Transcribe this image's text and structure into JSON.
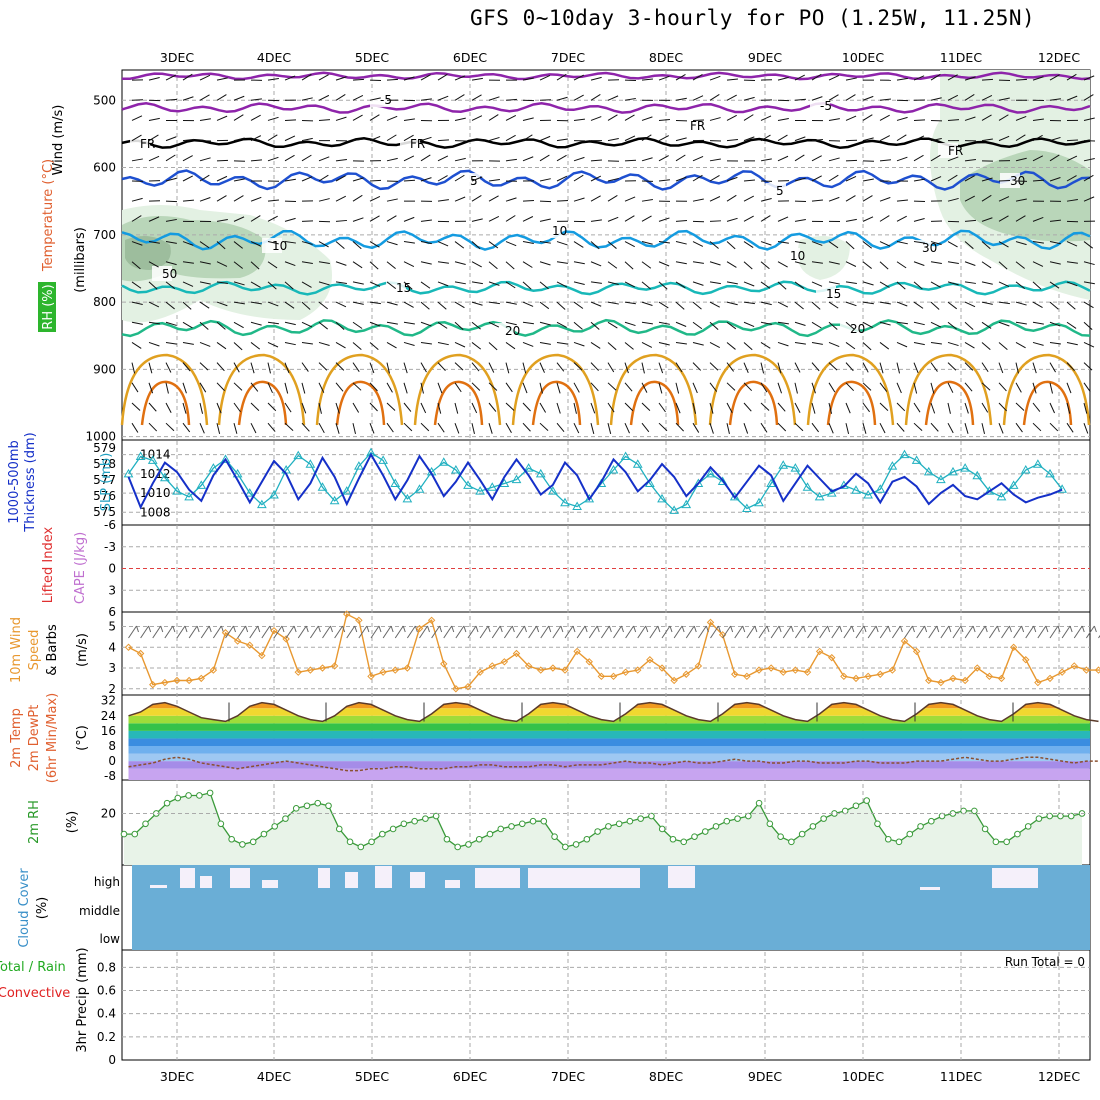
{
  "title": "GFS 0~10day 3-hourly for PO (1.25W, 11.25N)",
  "dates": [
    "3DEC",
    "4DEC",
    "5DEC",
    "6DEC",
    "7DEC",
    "8DEC",
    "9DEC",
    "10DEC",
    "11DEC",
    "12DEC"
  ],
  "colors": {
    "temp_cold": "#8e24aa",
    "temp_blue": "#1e50d0",
    "temp_sky": "#149be0",
    "temp_teal": "#18b8b8",
    "temp_green": "#20b888",
    "temp_warm": "#e0a020",
    "temp_hot": "#e07010",
    "rh_fill_light": "#e3f1e3",
    "rh_fill_mid": "#b9d6b9",
    "rh_fill_dark": "#9dbd9d",
    "thickness": "#1530c8",
    "slp": "#20b0c0",
    "wind": "#e89830",
    "rh2m": "#3a9a3a",
    "cloud": "#6aaed6",
    "cloud_gap": "#f5f0fa",
    "lifted_zero": "#e04040",
    "precip_total": "#22aa22",
    "precip_conv": "#e02020"
  },
  "panels": {
    "upper_air": {
      "ylabels": [
        "Wind (m/s)",
        "Temperature (°C)",
        "(millibars)",
        "RH (%)"
      ],
      "ticks": [
        "500",
        "600",
        "700",
        "800",
        "900",
        "1000"
      ],
      "contour_labels": [
        "-5",
        "-5",
        "FR",
        "FR",
        "FR",
        "FR",
        "5",
        "5",
        "10",
        "10",
        "15",
        "15",
        "20",
        "20",
        "30",
        "30",
        "50",
        "10"
      ]
    },
    "thickness": {
      "ylabels": [
        "1000-500mb",
        "Thickness (dm)",
        "SLP (mb)"
      ],
      "left_ticks": [
        "579",
        "578",
        "577",
        "576",
        "575"
      ],
      "right_ticks": [
        "1014",
        "1012",
        "1010",
        "1008"
      ]
    },
    "stability": {
      "ylabels": [
        "Lifted Index",
        "CAPE (J/kg)"
      ],
      "ticks": [
        "-6",
        "-3",
        "0",
        "3",
        "6"
      ]
    },
    "wind10m": {
      "ylabels": [
        "10m Wind",
        "Speed",
        "& Barbs",
        "(m/s)"
      ],
      "ticks": [
        "5",
        "4",
        "3",
        "2"
      ]
    },
    "temp2m": {
      "ylabels": [
        "2m Temp",
        "2m DewPt",
        "(6hr Min/Max)",
        "(°C)"
      ],
      "ticks": [
        "32",
        "24",
        "16",
        "8",
        "0",
        "-8"
      ]
    },
    "rh2m": {
      "ylabels": [
        "2m RH",
        "(%)"
      ],
      "ticks": [
        "20"
      ]
    },
    "cloud": {
      "ylabels": [
        "Cloud Cover",
        "(%)"
      ],
      "levels": [
        "high",
        "middle",
        "low"
      ]
    },
    "precip": {
      "ylabels": [
        "Total / Rain",
        "Convective",
        "3hr Precip (mm)"
      ],
      "ticks": [
        "0.8",
        "0.6",
        "0.4",
        "0.2",
        "0"
      ],
      "run_total": "Run Total = 0"
    }
  },
  "chart_data": [
    {
      "type": "line",
      "title": "1000-500mb Thickness (dm) / SLP (mb)",
      "x": "3-hourly steps from 2DEC 12Z to 12DEC 06Z",
      "series": [
        {
          "name": "Thickness (dm)",
          "axis": "left",
          "ylim": [
            574.5,
            579.2
          ],
          "values": [
            577.2,
            575.3,
            576.8,
            578.1,
            577.5,
            576.4,
            575.7,
            577.3,
            578.3,
            577.0,
            575.6,
            576.9,
            578.2,
            577.4,
            575.8,
            576.8,
            578.4,
            577.2,
            575.5,
            577.1,
            578.6,
            577.3,
            575.8,
            577.0,
            578.5,
            577.4,
            576.0,
            576.9,
            578.1,
            577.0,
            575.8,
            577.2,
            578.3,
            577.3,
            576.1,
            576.7,
            578.1,
            577.3,
            575.8,
            576.9,
            578.3,
            577.5,
            576.3,
            577.0,
            578.0,
            577.2,
            576.0,
            576.8,
            577.8,
            577.0,
            575.9,
            576.9,
            577.9,
            577.3,
            575.7,
            576.8,
            577.9,
            577.1,
            576.3,
            576.6,
            577.4,
            576.8,
            575.6,
            576.9,
            577.2,
            576.6,
            575.5,
            576.2,
            576.7,
            576.0,
            575.8,
            576.3,
            576.8,
            576.1,
            575.6,
            575.9,
            576.1,
            576.4
          ]
        },
        {
          "name": "SLP (mb)",
          "axis": "right",
          "ylim": [
            1007.2,
            1015.0
          ],
          "values": [
            1012.0,
            1013.8,
            1013.4,
            1011.6,
            1010.2,
            1009.6,
            1010.8,
            1012.6,
            1013.5,
            1012.0,
            1010.0,
            1008.8,
            1009.8,
            1012.4,
            1013.9,
            1013.0,
            1010.6,
            1009.2,
            1010.2,
            1012.8,
            1014.2,
            1013.4,
            1011.0,
            1009.4,
            1010.4,
            1012.2,
            1013.2,
            1012.4,
            1010.8,
            1010.2,
            1010.6,
            1011.0,
            1011.4,
            1012.6,
            1012.0,
            1010.2,
            1009.0,
            1008.6,
            1009.4,
            1011.0,
            1012.4,
            1013.8,
            1013.0,
            1011.0,
            1009.4,
            1008.2,
            1008.8,
            1011.0,
            1012.0,
            1011.2,
            1009.6,
            1008.4,
            1009.0,
            1011.0,
            1012.9,
            1012.6,
            1010.6,
            1009.6,
            1010.0,
            1010.8,
            1010.3,
            1009.8,
            1010.4,
            1012.8,
            1014.0,
            1013.4,
            1012.2,
            1011.4,
            1012.2,
            1012.6,
            1011.8,
            1010.2,
            1009.6,
            1010.8,
            1012.4,
            1013.0,
            1012.0,
            1010.4
          ]
        }
      ]
    },
    {
      "type": "line",
      "title": "10m Wind Speed (m/s)",
      "ylim": [
        1.7,
        5.7
      ],
      "series": [
        {
          "name": "10m Wind Speed",
          "values": [
            4.0,
            3.7,
            2.2,
            2.3,
            2.4,
            2.4,
            2.5,
            2.9,
            4.7,
            4.3,
            4.1,
            3.6,
            4.8,
            4.4,
            2.8,
            2.9,
            3.0,
            3.1,
            5.6,
            5.3,
            2.6,
            2.8,
            2.9,
            3.0,
            4.9,
            5.3,
            3.2,
            2.0,
            2.1,
            2.8,
            3.1,
            3.3,
            3.7,
            3.1,
            2.9,
            3.0,
            2.9,
            3.8,
            3.3,
            2.6,
            2.6,
            2.8,
            2.9,
            3.4,
            3.0,
            2.4,
            2.7,
            3.1,
            5.2,
            4.6,
            2.7,
            2.6,
            2.9,
            3.0,
            2.8,
            2.9,
            2.8,
            3.8,
            3.5,
            2.6,
            2.5,
            2.6,
            2.7,
            2.9,
            4.3,
            3.8,
            2.4,
            2.3,
            2.5,
            2.4,
            3.0,
            2.6,
            2.5,
            4.0,
            3.4,
            2.3,
            2.5,
            2.8,
            3.1,
            2.9,
            2.9,
            2.9,
            3.5
          ]
        }
      ]
    },
    {
      "type": "area",
      "title": "2m Temp / 2m DewPt (°C)",
      "ylim": [
        -10,
        35
      ],
      "series": [
        {
          "name": "2m Temp",
          "values": [
            24,
            26,
            30,
            31,
            29,
            26,
            23,
            22,
            21,
            24,
            29,
            31,
            30,
            27,
            24,
            22,
            21,
            24,
            29,
            31,
            30,
            27,
            24,
            22,
            21,
            25,
            30,
            31,
            30,
            27,
            24,
            22,
            21,
            25,
            30,
            31,
            30,
            27,
            24,
            22,
            21,
            25,
            30,
            31,
            30,
            27,
            24,
            22,
            21,
            25,
            30,
            31,
            30,
            27,
            24,
            22,
            21,
            25,
            30,
            31,
            30,
            27,
            24,
            22,
            21,
            25,
            30,
            31,
            30,
            27,
            24,
            22,
            21,
            25,
            30,
            31,
            30,
            27,
            24,
            22,
            21
          ]
        },
        {
          "name": "2m DewPt",
          "values": [
            -3,
            -2,
            -1,
            1,
            2,
            1,
            -1,
            -2,
            -3,
            -4,
            -3,
            -2,
            -1,
            0,
            -1,
            -2,
            -3,
            -4,
            -5,
            -5,
            -4,
            -4,
            -3,
            -3,
            -4,
            -4,
            -4,
            -3,
            -3,
            -2,
            -2,
            -3,
            -3,
            -3,
            -2,
            -2,
            -3,
            -2,
            -2,
            -2,
            -1,
            0,
            -1,
            -1,
            -2,
            -1,
            0,
            -1,
            -1,
            0,
            1,
            0,
            0,
            -1,
            -1,
            0,
            0,
            -1,
            -1,
            -1,
            0,
            0,
            -1,
            -1,
            -1,
            0,
            0,
            0,
            1,
            2,
            1,
            0,
            0,
            1,
            2,
            2,
            1,
            0,
            -1,
            0,
            0
          ]
        }
      ]
    },
    {
      "type": "area",
      "title": "2m RH (%)",
      "ylim": [
        0,
        33
      ],
      "series": [
        {
          "name": "2m RH",
          "values": [
            12,
            12,
            16,
            20,
            24,
            26,
            27,
            27,
            28,
            16,
            10,
            8,
            9,
            12,
            15,
            18,
            22,
            23,
            24,
            23,
            14,
            9,
            7,
            9,
            12,
            14,
            16,
            17,
            18,
            19,
            10,
            7,
            8,
            10,
            12,
            14,
            15,
            16,
            17,
            17,
            11,
            7,
            8,
            10,
            13,
            15,
            16,
            17,
            18,
            19,
            14,
            10,
            9,
            11,
            13,
            15,
            17,
            18,
            19,
            24,
            16,
            11,
            9,
            12,
            15,
            18,
            20,
            21,
            23,
            25,
            16,
            10,
            9,
            12,
            15,
            17,
            19,
            20,
            21,
            21,
            14,
            9,
            9,
            12,
            15,
            18,
            19,
            19,
            19,
            20
          ]
        }
      ]
    }
  ]
}
